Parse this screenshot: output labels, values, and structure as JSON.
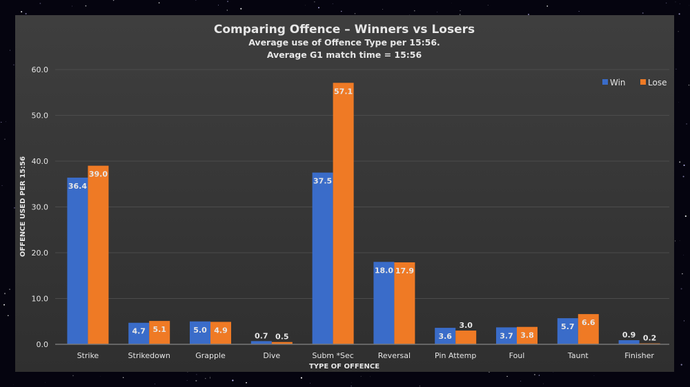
{
  "chart_data": {
    "type": "bar",
    "title": "Comparing Offence – Winners vs Losers",
    "subtitle": [
      "Average use of Offence Type per 15:56.",
      "Average G1 match time = 15:56"
    ],
    "xlabel": "TYPE OF OFFENCE",
    "ylabel": "OFFENCE USED PER 15:56",
    "ylim": [
      0,
      60
    ],
    "yticks": [
      "0.0",
      "10.0",
      "20.0",
      "30.0",
      "40.0",
      "50.0",
      "60.0"
    ],
    "grid": true,
    "legend": "top-right",
    "categories": [
      "Strike",
      "Strikedown",
      "Grapple",
      "Dive",
      "Subm *Sec",
      "Reversal",
      "Pin Attemp",
      "Foul",
      "Taunt",
      "Finisher"
    ],
    "series": [
      {
        "name": "Win",
        "color": "#3a6cc9",
        "values": [
          36.4,
          4.7,
          5.0,
          0.7,
          37.5,
          18.0,
          3.6,
          3.7,
          5.7,
          0.9
        ],
        "labels": [
          "36.4",
          "4.7",
          "5.0",
          "0.7",
          "37.5",
          "18.0",
          "3.6",
          "3.7",
          "5.7",
          "0.9"
        ]
      },
      {
        "name": "Lose",
        "color": "#ef7a25",
        "values": [
          39.0,
          5.1,
          4.9,
          0.5,
          57.1,
          17.9,
          3.0,
          3.8,
          6.6,
          0.2
        ],
        "labels": [
          "39.0",
          "5.1",
          "4.9",
          "0.5",
          "57.1",
          "17.9",
          "3.0",
          "3.8",
          "6.6",
          "0.2"
        ]
      }
    ]
  }
}
